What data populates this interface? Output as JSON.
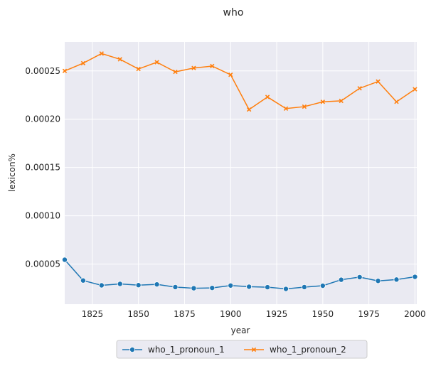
{
  "chart_data": {
    "type": "line",
    "title": "who",
    "xlabel": "year",
    "ylabel": "lexicon%",
    "xlim": [
      1810,
      2001
    ],
    "ylim": [
      8.5e-06,
      0.00028
    ],
    "x_ticks": [
      1825,
      1850,
      1875,
      1900,
      1925,
      1950,
      1975,
      2000
    ],
    "x_tick_labels": [
      "1825",
      "1850",
      "1875",
      "1900",
      "1925",
      "1950",
      "1975",
      "2000"
    ],
    "y_ticks": [
      5e-05,
      0.0001,
      0.00015,
      0.0002,
      0.00025
    ],
    "y_tick_labels": [
      "0.00005",
      "0.00010",
      "0.00015",
      "0.00020",
      "0.00025"
    ],
    "grid": true,
    "legend_position": "bottom-center",
    "x": [
      1810,
      1820,
      1830,
      1840,
      1850,
      1860,
      1870,
      1880,
      1890,
      1900,
      1910,
      1920,
      1930,
      1940,
      1950,
      1960,
      1970,
      1980,
      1990,
      2000
    ],
    "series": [
      {
        "name": "who_1_pronoun_1",
        "color": "#1f77b4",
        "marker": "circle",
        "values": [
          5.45e-05,
          3.3e-05,
          2.8e-05,
          2.95e-05,
          2.82e-05,
          2.9e-05,
          2.62e-05,
          2.5e-05,
          2.53e-05,
          2.78e-05,
          2.66e-05,
          2.61e-05,
          2.43e-05,
          2.62e-05,
          2.76e-05,
          3.38e-05,
          3.65e-05,
          3.26e-05,
          3.4e-05,
          3.68e-05
        ]
      },
      {
        "name": "who_1_pronoun_2",
        "color": "#ff7f0e",
        "marker": "x",
        "values": [
          0.00025,
          0.000258,
          0.000268,
          0.000262,
          0.000252,
          0.000259,
          0.000249,
          0.000253,
          0.000255,
          0.000246,
          0.00021,
          0.000223,
          0.000211,
          0.000213,
          0.000218,
          0.000219,
          0.000232,
          0.000239,
          0.000218,
          0.000231
        ]
      }
    ]
  }
}
